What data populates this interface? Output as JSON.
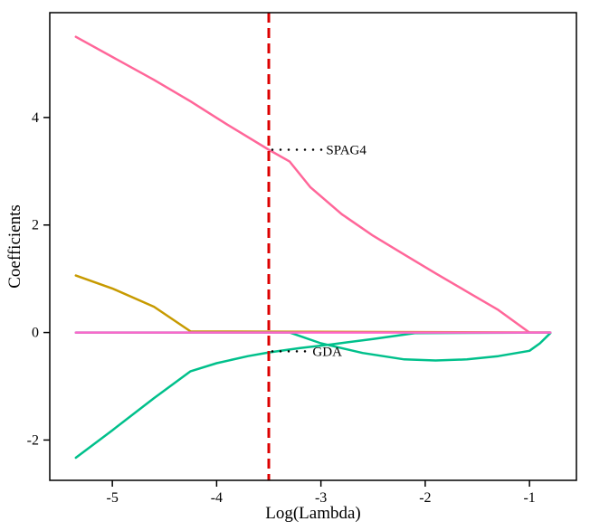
{
  "chart_data": {
    "type": "line",
    "xlabel": "Log(Lambda)",
    "ylabel": "Coefficients",
    "xlim": [
      -5.6,
      -0.55
    ],
    "ylim": [
      -2.75,
      5.95
    ],
    "xticks": [
      -5,
      -4,
      -3,
      -2,
      -1
    ],
    "yticks": [
      -2,
      0,
      2,
      4
    ],
    "grid": false,
    "legend": "none",
    "vline": {
      "x": -3.5,
      "color": "#dd0000",
      "style": "dashed"
    },
    "series": [
      {
        "color": "#ff6699",
        "x": [
          -5.35,
          -4.6,
          -4.25,
          -3.9,
          -3.5,
          -3.3,
          -3.1,
          -2.8,
          -2.5,
          -2.2,
          -1.9,
          -1.6,
          -1.3,
          -1.0,
          -0.8
        ],
        "y": [
          5.5,
          4.7,
          4.3,
          3.87,
          3.4,
          3.18,
          2.7,
          2.2,
          1.8,
          1.45,
          1.1,
          0.76,
          0.42,
          0.0,
          0.0
        ]
      },
      {
        "color": "#c79a00",
        "x": [
          -5.35,
          -5.0,
          -4.6,
          -4.25,
          -0.8
        ],
        "y": [
          1.06,
          0.82,
          0.48,
          0.02,
          0.0
        ]
      },
      {
        "color": "#00c08b",
        "x": [
          -5.35,
          -5.0,
          -4.6,
          -4.25,
          -4.0,
          -3.7,
          -3.5,
          -3.2,
          -2.9,
          -2.5,
          -2.1,
          -0.8
        ],
        "y": [
          -2.33,
          -1.82,
          -1.22,
          -0.72,
          -0.57,
          -0.44,
          -0.37,
          -0.29,
          -0.22,
          -0.12,
          -0.01,
          0.0
        ]
      },
      {
        "color": "#00c08b",
        "x": [
          -5.35,
          -3.3,
          -3.0,
          -2.6,
          -2.2,
          -1.9,
          -1.6,
          -1.3,
          -1.0,
          -0.9,
          -0.8
        ],
        "y": [
          0.0,
          0.0,
          -0.2,
          -0.38,
          -0.5,
          -0.52,
          -0.5,
          -0.44,
          -0.34,
          -0.2,
          -0.01
        ]
      },
      {
        "color": "#ff66cc",
        "x": [
          -5.35,
          -0.8
        ],
        "y": [
          0.0,
          0.0
        ]
      }
    ],
    "annotations": [
      {
        "label": "SPAG4",
        "x": -3.5,
        "y": 3.4,
        "text_x": -2.95
      },
      {
        "label": "GDA",
        "x": -3.5,
        "y": -0.35,
        "text_x": -3.08
      }
    ]
  }
}
